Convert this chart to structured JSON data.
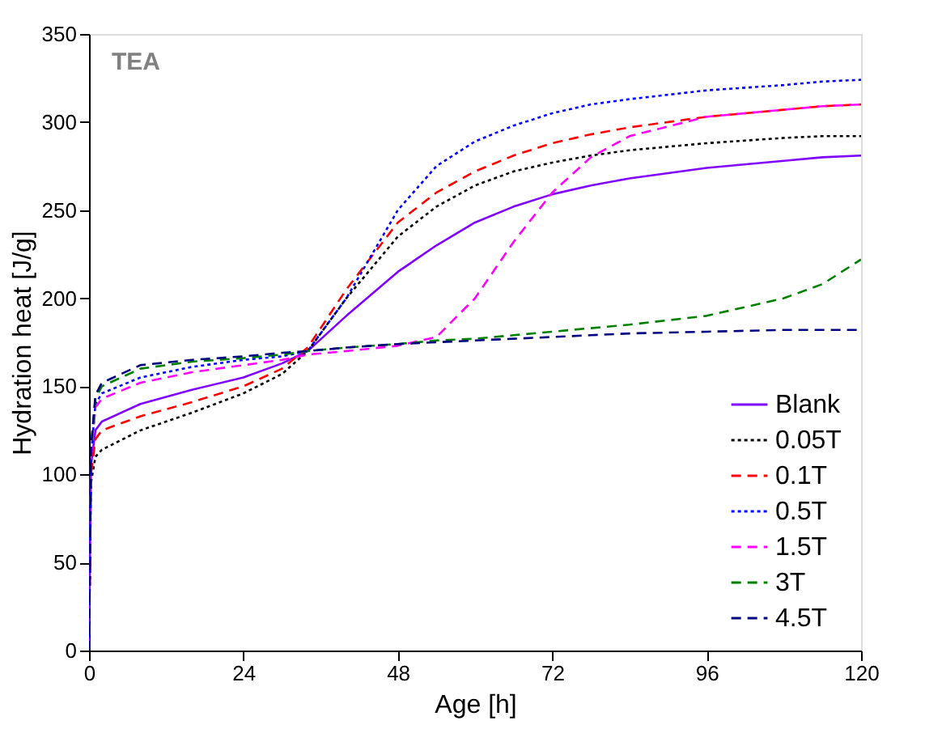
{
  "chart_data": {
    "type": "line",
    "xlabel": "Age  [h]",
    "ylabel": "Hydration heat  [J/g]",
    "annotations": [
      "TEA"
    ],
    "xlim": [
      0,
      120
    ],
    "xticks": [
      0,
      24,
      48,
      72,
      96,
      120
    ],
    "ylim": [
      0,
      350
    ],
    "yticks": [
      0,
      50,
      100,
      150,
      200,
      250,
      300,
      350
    ],
    "grid": false,
    "legend": "bottom right",
    "marker": "none",
    "x": [
      0,
      0.3,
      1,
      2,
      8,
      16,
      24,
      30,
      34,
      40,
      48,
      54,
      60,
      66,
      72,
      78,
      84,
      96,
      108,
      114,
      120
    ],
    "series": [
      {
        "name": "Blank",
        "color": "#8000ff",
        "line_style": "solid",
        "values": [
          0,
          105,
          125,
          130,
          140,
          148,
          155,
          163,
          170,
          190,
          215,
          230,
          243,
          252,
          259,
          264,
          268,
          274,
          278,
          280,
          281
        ]
      },
      {
        "name": "0.05T",
        "color": "#000000",
        "line_style": "dotted",
        "values": [
          0,
          95,
          110,
          114,
          125,
          135,
          146,
          157,
          170,
          200,
          235,
          252,
          264,
          272,
          277,
          281,
          284,
          288,
          291,
          292,
          292
        ]
      },
      {
        "name": "0.1T",
        "color": "#ff0000",
        "line_style": "dashed",
        "values": [
          0,
          100,
          120,
          125,
          133,
          141,
          150,
          160,
          172,
          205,
          243,
          260,
          272,
          281,
          288,
          293,
          297,
          303,
          307,
          309,
          310
        ]
      },
      {
        "name": "0.5T",
        "color": "#0000ff",
        "line_style": "dotted",
        "values": [
          0,
          110,
          140,
          146,
          155,
          161,
          165,
          167,
          170,
          200,
          250,
          275,
          289,
          298,
          305,
          310,
          313,
          318,
          321,
          323,
          324
        ]
      },
      {
        "name": "1.5T",
        "color": "#ff00ff",
        "line_style": "dashed",
        "values": [
          0,
          110,
          138,
          143,
          152,
          158,
          162,
          165,
          168,
          170,
          173,
          178,
          200,
          232,
          260,
          280,
          292,
          303,
          307,
          309,
          310
        ]
      },
      {
        "name": "3T",
        "color": "#008000",
        "line_style": "dashed",
        "values": [
          0,
          115,
          143,
          150,
          160,
          164,
          166,
          168,
          170,
          172,
          174,
          176,
          177,
          179,
          181,
          183,
          185,
          190,
          200,
          208,
          222
        ]
      },
      {
        "name": "4.5T",
        "color": "#000080",
        "line_style": "dashed",
        "values": [
          0,
          115,
          145,
          152,
          162,
          165,
          167,
          169,
          170,
          172,
          174,
          175,
          176,
          177,
          178,
          179,
          180,
          181,
          182,
          182,
          182
        ]
      }
    ]
  }
}
